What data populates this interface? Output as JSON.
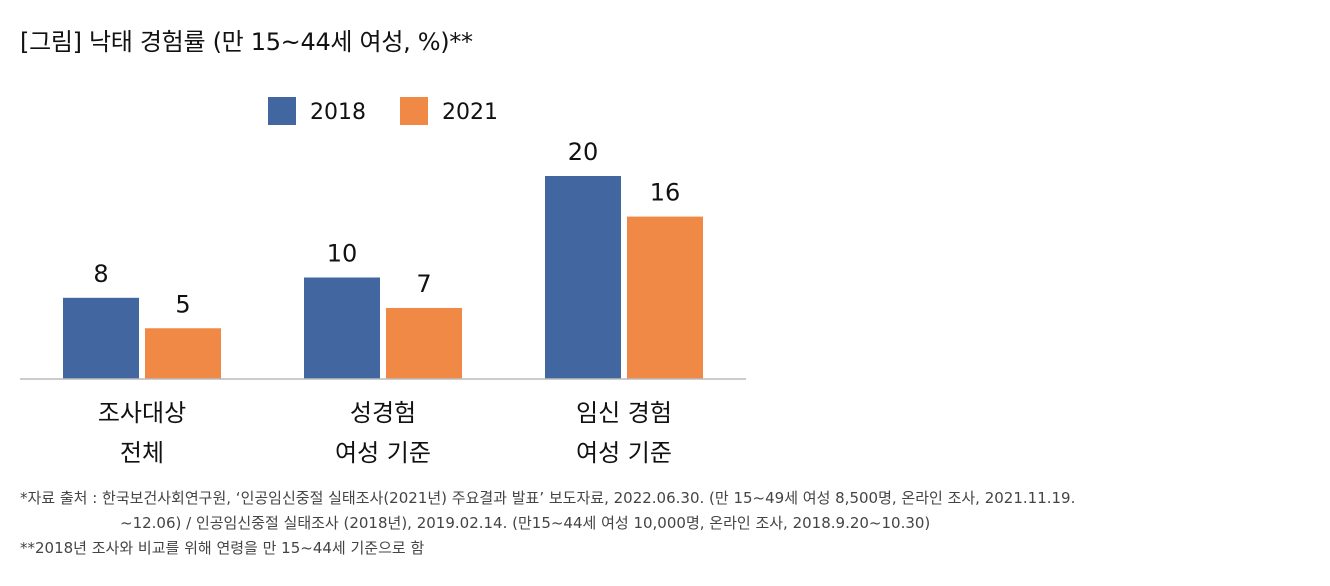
{
  "title": "[그림] 낙태 경험률 (만 15~44세 여성, %)**",
  "chart_data": {
    "type": "bar",
    "categories": [
      [
        "조사대상",
        "전체"
      ],
      [
        "성경험",
        "여성 기준"
      ],
      [
        "임신 경험",
        "여성 기준"
      ]
    ],
    "series": [
      {
        "name": "2018",
        "values": [
          8,
          10,
          20
        ]
      },
      {
        "name": "2021",
        "values": [
          5,
          7,
          16
        ]
      }
    ],
    "ylim": [
      0,
      20
    ],
    "legend_position": "top",
    "grid": false
  },
  "colors": {
    "series_2018": "#4166A0",
    "series_2021": "#F08846",
    "axis": "#BBBBBB"
  },
  "footnotes": {
    "source_line1": "*자료 출처 : 한국보건사회연구원, ‘인공임신중절 실태조사(2021년) 주요결과 발표’ 보도자료, 2022.06.30. (만 15~49세 여성 8,500명, 온라인 조사, 2021.11.19.",
    "source_line2": "~12.06) / 인공임신중절 실태조사 (2018년), 2019.02.14. (만15~44세 여성 10,000명, 온라인 조사, 2018.9.20~10.30)",
    "note": "**2018년 조사와 비교를 위해 연령을 만 15~44세 기준으로 함"
  }
}
